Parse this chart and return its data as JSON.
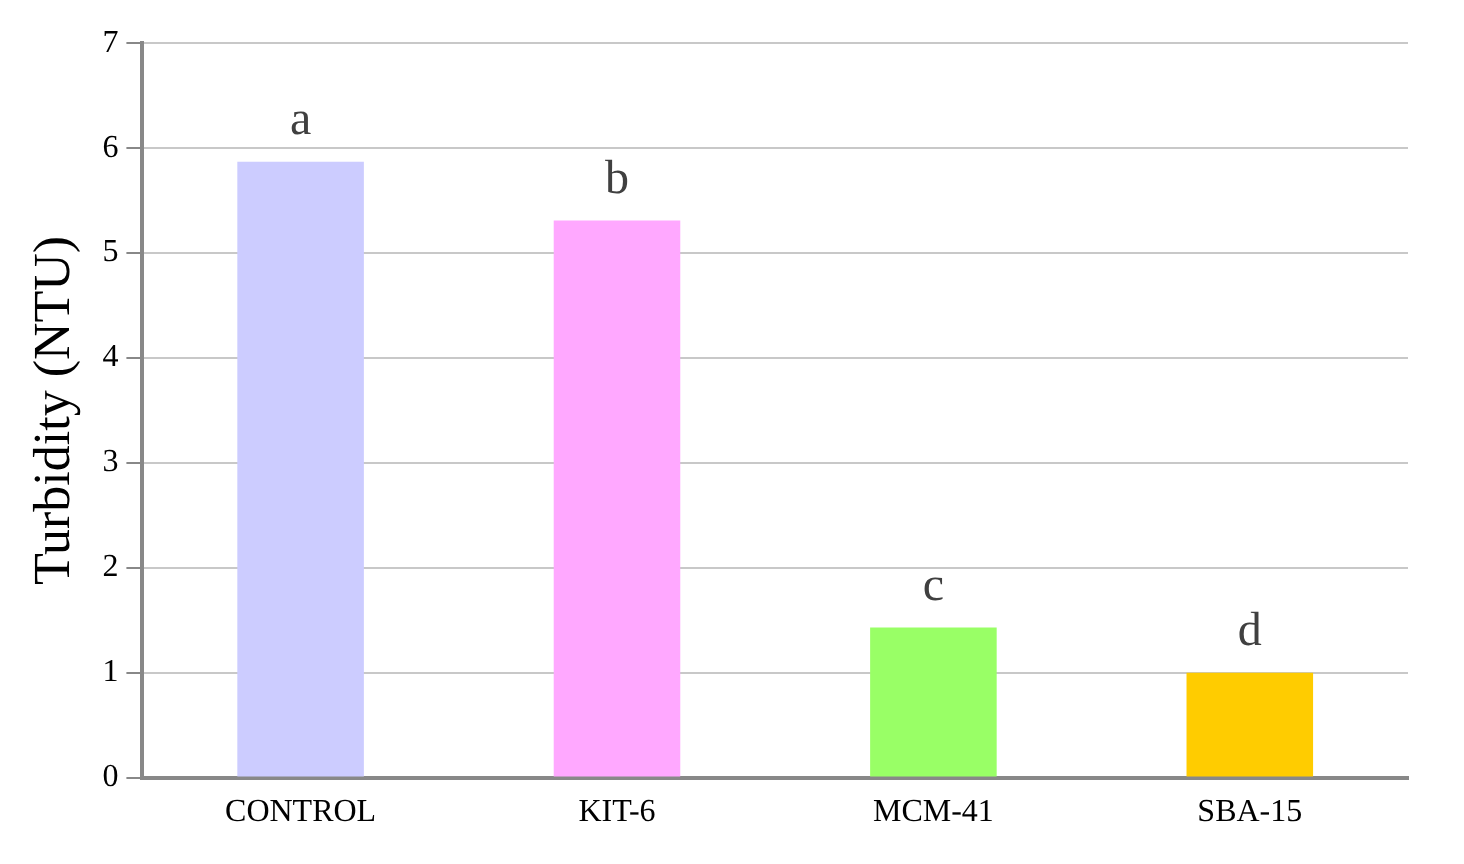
{
  "chart_data": {
    "type": "bar",
    "ylabel": "Turbidity (NTU)",
    "categories": [
      "CONTROL",
      "KIT-6",
      "MCM-41",
      "SBA-15"
    ],
    "values": [
      5.87,
      5.31,
      1.43,
      1.0
    ],
    "colors": [
      "#ccccff",
      "#ffa8ff",
      "#99ff66",
      "#ffcc00"
    ],
    "ylim": [
      0,
      7
    ],
    "yticks": [
      0,
      1,
      2,
      3,
      4,
      5,
      6,
      7
    ],
    "grid": "y",
    "annotations": [
      {
        "text": "a",
        "x": "CONTROL",
        "y": 5.87
      },
      {
        "text": "b",
        "x": "KIT-6",
        "y": 5.31
      },
      {
        "text": "c",
        "x": "MCM-41",
        "y": 1.43
      },
      {
        "text": "d",
        "x": "SBA-15",
        "y": 1.0
      }
    ]
  }
}
